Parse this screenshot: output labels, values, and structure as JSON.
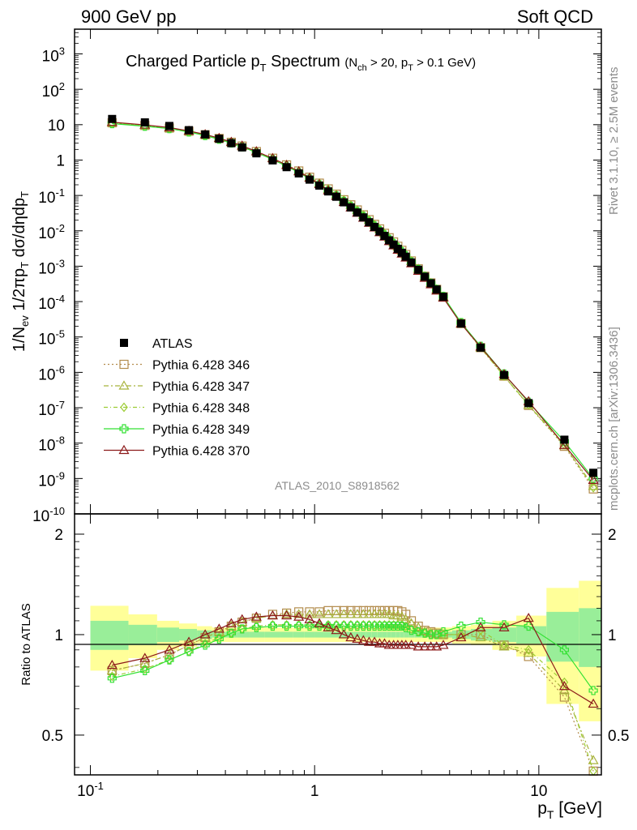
{
  "header": {
    "left": "900 GeV pp",
    "right": "Soft QCD"
  },
  "side_text": {
    "rivet": "Rivet 3.1.10, ≥ 2.5M events",
    "mcplots": "mcplots.cern.ch [arXiv:1306.3436]"
  },
  "chart_data": [
    {
      "type": "scatter",
      "title": "Charged Particle p",
      "title_sub": "T",
      "title_rest": " Spectrum",
      "title_cut": "(N",
      "title_cut_sub": "ch",
      "title_cut_mid": " > 20, p",
      "title_cut_sub2": "T",
      "title_cut_end": " > 0.1 GeV)",
      "ylabel": "1/N_ev 1/2πp_T dσ/dηdp_T",
      "analysis_id": "ATLAS_2010_S8918562",
      "x_scale": "log",
      "y_scale": "log",
      "xlim": [
        0.085,
        19
      ],
      "ylim": [
        1e-10,
        5000
      ],
      "legend_position": "middle-left",
      "x": [
        0.125,
        0.175,
        0.225,
        0.275,
        0.325,
        0.375,
        0.425,
        0.475,
        0.55,
        0.65,
        0.75,
        0.85,
        0.95,
        1.05,
        1.15,
        1.25,
        1.35,
        1.45,
        1.55,
        1.65,
        1.75,
        1.85,
        1.95,
        2.05,
        2.15,
        2.25,
        2.35,
        2.45,
        2.55,
        2.7,
        2.9,
        3.1,
        3.3,
        3.5,
        3.75,
        4.5,
        5.5,
        7,
        9,
        13,
        17.5
      ],
      "series": [
        {
          "name": "ATLAS",
          "color": "#000000",
          "marker": "square-filled",
          "values": [
            14.5,
            11.6,
            9.2,
            7.0,
            5.3,
            4.0,
            3.0,
            2.28,
            1.55,
            0.98,
            0.63,
            0.42,
            0.28,
            0.19,
            0.13,
            0.092,
            0.064,
            0.046,
            0.033,
            0.024,
            0.0175,
            0.0129,
            0.0096,
            0.0072,
            0.0054,
            0.0041,
            0.0031,
            0.0024,
            0.00186,
            0.00128,
            0.000795,
            0.000505,
            0.00033,
            0.00022,
            0.000137,
            2.4e-05,
            5e-06,
            8.4e-07,
            1.35e-07,
            1.25e-08,
            1.45e-09
          ]
        },
        {
          "name": "Pythia 6.428 346",
          "color": "#b38c4d",
          "marker": "square-open",
          "ratio": [
            0.78,
            0.82,
            0.87,
            0.93,
            0.98,
            1.02,
            1.06,
            1.09,
            1.12,
            1.15,
            1.16,
            1.17,
            1.17,
            1.17,
            1.18,
            1.18,
            1.18,
            1.18,
            1.18,
            1.18,
            1.18,
            1.18,
            1.18,
            1.18,
            1.18,
            1.18,
            1.18,
            1.17,
            1.15,
            1.1,
            1.06,
            1.03,
            1.02,
            1.01,
            1.0,
            1.0,
            1.0,
            0.93,
            0.86,
            0.65,
            0.35
          ]
        },
        {
          "name": "Pythia 6.428 347",
          "color": "#a8b33c",
          "marker": "triangle-open",
          "ratio": [
            0.78,
            0.82,
            0.87,
            0.93,
            0.98,
            1.02,
            1.06,
            1.09,
            1.12,
            1.14,
            1.15,
            1.15,
            1.15,
            1.15,
            1.15,
            1.15,
            1.15,
            1.15,
            1.15,
            1.15,
            1.15,
            1.15,
            1.15,
            1.15,
            1.15,
            1.14,
            1.14,
            1.13,
            1.11,
            1.08,
            1.05,
            1.02,
            1.01,
            1.0,
            1.0,
            1.0,
            0.98,
            0.92,
            0.88,
            0.68,
            0.42
          ]
        },
        {
          "name": "Pythia 6.428 348",
          "color": "#9ccc33",
          "marker": "diamond-open",
          "ratio": [
            0.75,
            0.79,
            0.84,
            0.89,
            0.94,
            0.98,
            1.01,
            1.04,
            1.06,
            1.07,
            1.07,
            1.07,
            1.07,
            1.07,
            1.07,
            1.07,
            1.07,
            1.07,
            1.07,
            1.07,
            1.07,
            1.07,
            1.07,
            1.07,
            1.07,
            1.07,
            1.07,
            1.07,
            1.06,
            1.04,
            1.02,
            1.01,
            1.0,
            1.0,
            1.0,
            1.0,
            1.03,
            0.93,
            0.9,
            0.72,
            0.38
          ]
        },
        {
          "name": "Pythia 6.428 349",
          "color": "#33e133",
          "marker": "cross-open",
          "ratio": [
            0.74,
            0.78,
            0.84,
            0.89,
            0.93,
            0.97,
            1.01,
            1.04,
            1.05,
            1.06,
            1.06,
            1.06,
            1.06,
            1.06,
            1.06,
            1.06,
            1.06,
            1.06,
            1.06,
            1.06,
            1.06,
            1.06,
            1.06,
            1.06,
            1.06,
            1.06,
            1.06,
            1.06,
            1.05,
            1.03,
            1.02,
            1.01,
            1.0,
            1.0,
            1.02,
            1.06,
            1.09,
            1.07,
            1.06,
            0.9,
            0.68
          ]
        },
        {
          "name": "Pythia 6.428 370",
          "color": "#8c1a1a",
          "marker": "triangle-open",
          "ratio": [
            0.81,
            0.85,
            0.9,
            0.95,
            1.0,
            1.04,
            1.08,
            1.11,
            1.13,
            1.14,
            1.14,
            1.13,
            1.11,
            1.08,
            1.05,
            1.03,
            1.0,
            0.98,
            0.97,
            0.96,
            0.95,
            0.95,
            0.94,
            0.94,
            0.93,
            0.93,
            0.93,
            0.93,
            0.93,
            0.93,
            0.92,
            0.92,
            0.92,
            0.92,
            0.93,
            0.98,
            1.05,
            1.05,
            1.12,
            0.7,
            0.62
          ]
        }
      ],
      "y_ticks": [
        "10^-10",
        "10^-9",
        "10^-8",
        "10^-7",
        "10^-6",
        "10^-5",
        "10^-4",
        "10^-3",
        "10^-2",
        "10^-1",
        "1",
        "10",
        "10^2",
        "10^3"
      ]
    },
    {
      "type": "scatter",
      "ylabel": "Ratio to ATLAS",
      "xlabel": "p_T [GeV]",
      "x_scale": "log",
      "xlim": [
        0.085,
        19
      ],
      "ylim": [
        0.38,
        2.3
      ],
      "y_ticks": [
        "0.5",
        "1",
        "2"
      ],
      "x_ticks": [
        "10^-1",
        "1",
        "10"
      ],
      "reference_line": 1.0
    }
  ]
}
